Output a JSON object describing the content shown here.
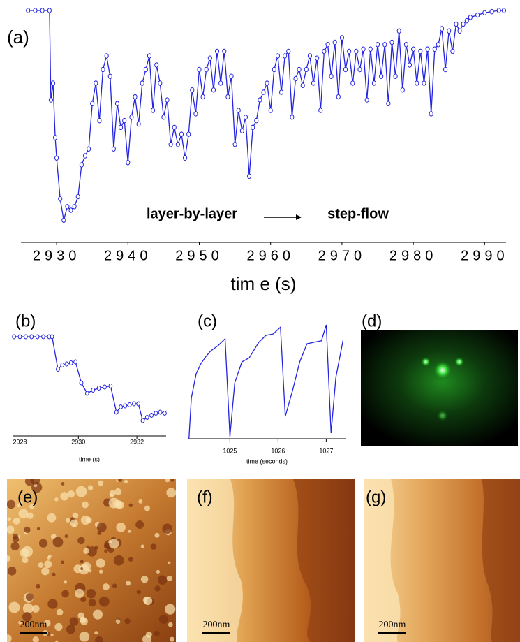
{
  "chart_data": [
    {
      "type": "line",
      "label": "(a)",
      "xlabel": "tim e (s)",
      "annotations": [
        "layer-by-layer",
        "step-flow"
      ],
      "color": "#2424e0",
      "marker": "circle",
      "xlim": [
        2925,
        2993
      ],
      "xticks": [
        2930,
        2940,
        2950,
        2960,
        2970,
        2980,
        2990
      ],
      "ylim": [
        0,
        100
      ],
      "x": [
        2926,
        2927,
        2928,
        2929,
        2929.2,
        2929.5,
        2929.8,
        2930,
        2930.5,
        2931,
        2931.5,
        2932,
        2932.5,
        2933,
        2933.5,
        2934,
        2934.5,
        2935,
        2935.5,
        2936,
        2936.5,
        2937,
        2937.5,
        2938,
        2938.5,
        2939,
        2939.5,
        2940,
        2940.5,
        2941,
        2941.5,
        2942,
        2942.5,
        2943,
        2943.5,
        2944,
        2944.5,
        2945,
        2945.5,
        2946,
        2946.5,
        2947,
        2947.5,
        2948,
        2948.5,
        2949,
        2949.5,
        2950,
        2950.5,
        2951,
        2951.5,
        2952,
        2952.5,
        2953,
        2953.5,
        2954,
        2954.5,
        2955,
        2955.5,
        2956,
        2956.5,
        2957,
        2957.5,
        2958,
        2958.5,
        2959,
        2959.5,
        2960,
        2960.5,
        2961,
        2961.5,
        2962,
        2962.5,
        2963,
        2963.5,
        2964,
        2964.5,
        2965,
        2965.5,
        2966,
        2966.5,
        2967,
        2967.5,
        2968,
        2968.5,
        2969,
        2969.5,
        2970,
        2970.5,
        2971,
        2971.5,
        2972,
        2972.5,
        2973,
        2973.5,
        2974,
        2974.5,
        2975,
        2975.5,
        2976,
        2976.5,
        2977,
        2977.5,
        2978,
        2978.5,
        2979,
        2979.5,
        2980,
        2980.5,
        2981,
        2981.5,
        2982,
        2982.5,
        2983,
        2983.5,
        2984,
        2984.5,
        2985,
        2985.5,
        2986,
        2986.5,
        2987,
        2987.5,
        2988,
        2989,
        2990,
        2991,
        2992,
        2992.7
      ],
      "values": [
        100,
        100,
        100,
        100,
        60.6,
        68,
        44,
        35,
        17,
        7.6,
        13.6,
        12,
        13.6,
        18,
        32,
        36,
        39,
        59,
        68,
        51.5,
        74,
        80,
        71,
        39,
        59,
        48.5,
        51.5,
        33,
        53,
        62,
        50,
        68,
        74,
        80,
        56,
        76,
        68,
        53,
        60.6,
        41,
        48.5,
        41,
        45.5,
        35,
        45.5,
        65,
        54.5,
        74,
        62,
        74,
        79,
        65,
        82,
        68,
        82,
        62,
        71,
        41,
        56,
        47,
        53,
        27,
        48.5,
        51.5,
        60.6,
        64,
        68,
        56,
        74,
        80,
        64,
        80,
        82,
        53,
        70,
        74,
        67,
        74,
        80,
        68,
        79,
        56,
        82,
        85,
        71,
        86,
        62,
        88,
        74,
        82,
        68,
        82,
        74,
        83,
        60.6,
        83,
        68,
        85,
        71,
        85,
        59,
        86,
        71,
        91,
        65,
        85,
        76,
        83,
        68,
        82,
        68,
        83,
        54.5,
        83,
        85,
        92,
        74,
        91,
        82,
        94,
        91,
        94,
        95.5,
        97,
        98,
        99,
        99.5,
        100,
        100
      ]
    },
    {
      "type": "line",
      "label": "(b)",
      "xlabel": "time (s)",
      "color": "#2424e0",
      "marker": "circle",
      "xlim": [
        2927.75,
        2933
      ],
      "xticks": [
        2928,
        2930,
        2932
      ],
      "ylim": [
        0,
        100
      ],
      "x": [
        2927.8,
        2928,
        2928.2,
        2928.4,
        2928.6,
        2928.8,
        2929,
        2929.1,
        2929.3,
        2929.45,
        2929.6,
        2929.75,
        2929.9,
        2930.1,
        2930.3,
        2930.5,
        2930.7,
        2930.9,
        2931.1,
        2931.3,
        2931.45,
        2931.6,
        2931.75,
        2931.9,
        2932.05,
        2932.2,
        2932.35,
        2932.5,
        2932.65,
        2932.8,
        2932.95
      ],
      "values": [
        92,
        92,
        92,
        92,
        92,
        92,
        92,
        92,
        61,
        65,
        66,
        67,
        68,
        48,
        38,
        41,
        43,
        44,
        45,
        20,
        25,
        26,
        27,
        28,
        28,
        12,
        15,
        17,
        19,
        20,
        19
      ]
    },
    {
      "type": "line",
      "label": "(c)",
      "xlabel": "time (seconds)",
      "color": "#2424e0",
      "marker": "none",
      "xlim": [
        1024.14,
        1027.4
      ],
      "xticks": [
        1025,
        1026,
        1027
      ],
      "ylim": [
        0,
        100
      ],
      "x": [
        1024.15,
        1024.2,
        1024.3,
        1024.4,
        1024.5,
        1024.6,
        1024.75,
        1024.9,
        1025,
        1025.1,
        1025.25,
        1025.4,
        1025.6,
        1025.75,
        1025.9,
        1026.05,
        1026.15,
        1026.3,
        1026.45,
        1026.6,
        1026.75,
        1026.9,
        1027,
        1027.1,
        1027.2,
        1027.35
      ],
      "values": [
        0,
        35.6,
        57,
        66,
        72,
        77,
        81.6,
        87.7,
        1.8,
        49,
        67.5,
        71,
        84.7,
        90.8,
        92,
        98,
        19.6,
        42.3,
        67.5,
        83.4,
        84.7,
        86,
        100,
        4.9,
        54,
        86.5
      ]
    }
  ],
  "images": [
    {
      "label": "(d)"
    },
    {
      "label": "(e)",
      "scale_bar": "200nm"
    },
    {
      "label": "(f)",
      "scale_bar": "200nm"
    },
    {
      "label": "(g)",
      "scale_bar": "200nm"
    }
  ]
}
